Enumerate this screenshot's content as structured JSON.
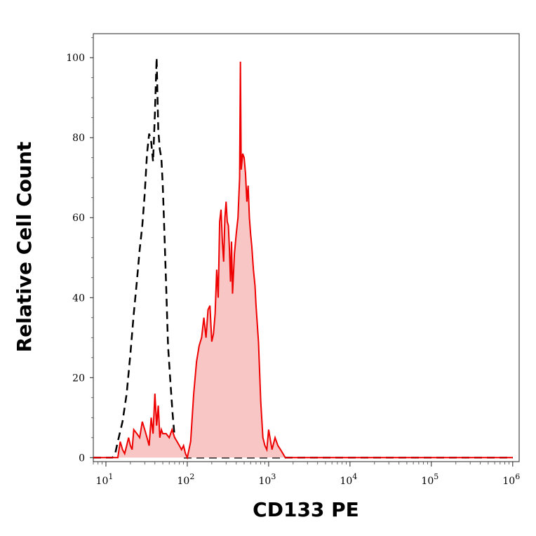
{
  "chart_data": {
    "type": "area",
    "xlabel": "CD133 PE",
    "ylabel": "Relative Cell Count",
    "x_scale": "log",
    "xlim": [
      7,
      1200000
    ],
    "ylim": [
      -1,
      106
    ],
    "grid": false,
    "x_ticks": [
      {
        "value": 10,
        "base": "10",
        "exp": "1"
      },
      {
        "value": 100,
        "base": "10",
        "exp": "2"
      },
      {
        "value": 1000,
        "base": "10",
        "exp": "3"
      },
      {
        "value": 10000,
        "base": "10",
        "exp": "4"
      },
      {
        "value": 100000,
        "base": "10",
        "exp": "5"
      },
      {
        "value": 1000000,
        "base": "10",
        "exp": "6"
      }
    ],
    "y_ticks": [
      0,
      20,
      40,
      60,
      80,
      100
    ],
    "series": [
      {
        "style": "dashed-black",
        "color": "#000000",
        "x": [
          7,
          12,
          13,
          14,
          16,
          18,
          20,
          22,
          24,
          26,
          28,
          30,
          32,
          34,
          36,
          38,
          40,
          42,
          44,
          46,
          48,
          50,
          52,
          55,
          58,
          62,
          66,
          70,
          75,
          80,
          90,
          100,
          200,
          1000,
          10000,
          100000,
          1000000
        ],
        "y": [
          0,
          0,
          1,
          4,
          9,
          16,
          26,
          36,
          44,
          52,
          58,
          66,
          76,
          81,
          79,
          74,
          86,
          100,
          82,
          77,
          75,
          68,
          58,
          43,
          28,
          19,
          11,
          5,
          2,
          0,
          0,
          0,
          0,
          0,
          0,
          0,
          0
        ]
      },
      {
        "style": "filled-red",
        "color": "#ee0000",
        "fill": "#f9c6c6",
        "x": [
          7,
          14,
          15,
          16,
          17,
          18,
          19,
          20,
          21,
          22,
          24,
          26,
          28,
          30,
          32,
          34,
          36,
          38,
          40,
          42,
          44,
          46,
          48,
          50,
          55,
          60,
          65,
          70,
          75,
          80,
          85,
          90,
          95,
          100,
          110,
          120,
          130,
          140,
          150,
          160,
          170,
          180,
          190,
          200,
          210,
          220,
          230,
          240,
          250,
          260,
          270,
          280,
          290,
          300,
          310,
          320,
          330,
          340,
          350,
          360,
          380,
          400,
          420,
          440,
          450,
          460,
          480,
          500,
          520,
          540,
          560,
          580,
          600,
          620,
          650,
          680,
          700,
          750,
          800,
          850,
          900,
          950,
          1000,
          1100,
          1200,
          1300,
          1400,
          1500,
          1600,
          1800,
          2000,
          10000,
          100000,
          1000000
        ],
        "y": [
          0,
          0,
          4,
          2,
          1,
          3,
          5,
          3,
          2,
          7,
          6,
          5,
          9,
          7,
          5,
          3,
          10,
          6,
          16,
          8,
          13,
          5,
          7,
          6,
          6,
          5,
          7,
          5,
          4,
          3,
          2,
          3,
          1,
          0,
          4,
          16,
          24,
          28,
          30,
          35,
          30,
          37,
          38,
          29,
          31,
          36,
          47,
          40,
          59,
          62,
          54,
          49,
          60,
          64,
          59,
          58,
          52,
          44,
          54,
          41,
          51,
          56,
          60,
          70,
          99,
          72,
          76,
          75,
          71,
          64,
          68,
          60,
          56,
          53,
          47,
          43,
          38,
          29,
          14,
          5,
          3,
          2,
          7,
          2,
          5,
          3,
          2,
          1,
          0,
          0,
          0,
          0,
          0,
          0
        ]
      }
    ]
  }
}
